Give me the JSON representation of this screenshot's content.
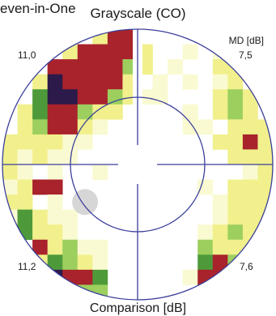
{
  "chart_data": {
    "type": "heatmap",
    "title_left": "even-in-One",
    "title_top": "Grayscale (CO)",
    "title_bottom": "Comparison [dB]",
    "md_unit": "MD [dB]",
    "md_values": {
      "top_left": "11,0",
      "top_right": "7,5",
      "bottom_left": "11,2",
      "bottom_right": "7,6"
    },
    "grid_size": 18,
    "grid_half": 9,
    "legend_scale": [
      "#ffffff",
      "#fafad2",
      "#f1f08c",
      "#9ccf5e",
      "#4e9a3a",
      "#a8232b",
      "#2b1a4a"
    ],
    "color_codes": {
      ".": "#ffffff",
      "y": "#fafad2",
      "Y": "#f1f08c",
      "g": "#9ccf5e",
      "G": "#4e9a3a",
      "r": "#a8232b",
      "k": "#2b1a4a"
    },
    "rows": [
      "......Yrr.........",
      "....YrrrrY..y.y...",
      "...rrrrrgY.y..YY..",
      "..YkrrrrY.y.y.yY..",
      "..GkkrrgYyy...YgY.",
      ".YGrrgYY....y.YgY.",
      ".YgrrYy.....yy.YYY",
      "YYYYyy........YYrY",
      "YyYyy..........YYY",
      "Yy.y..y.........yY",
      "yYrr.........y.YYY",
      "YY.y..........yYYY",
      "yGYyy.........yYYY",
      ".GYYy........yYgY.",
      "..rYgyy......gYYY.",
      "..YGgYy......Grgg.",
      "...krrG.....yrr...",
      "....rgg......G...."
    ],
    "blind_spot": {
      "col": 5,
      "row": 11
    }
  }
}
